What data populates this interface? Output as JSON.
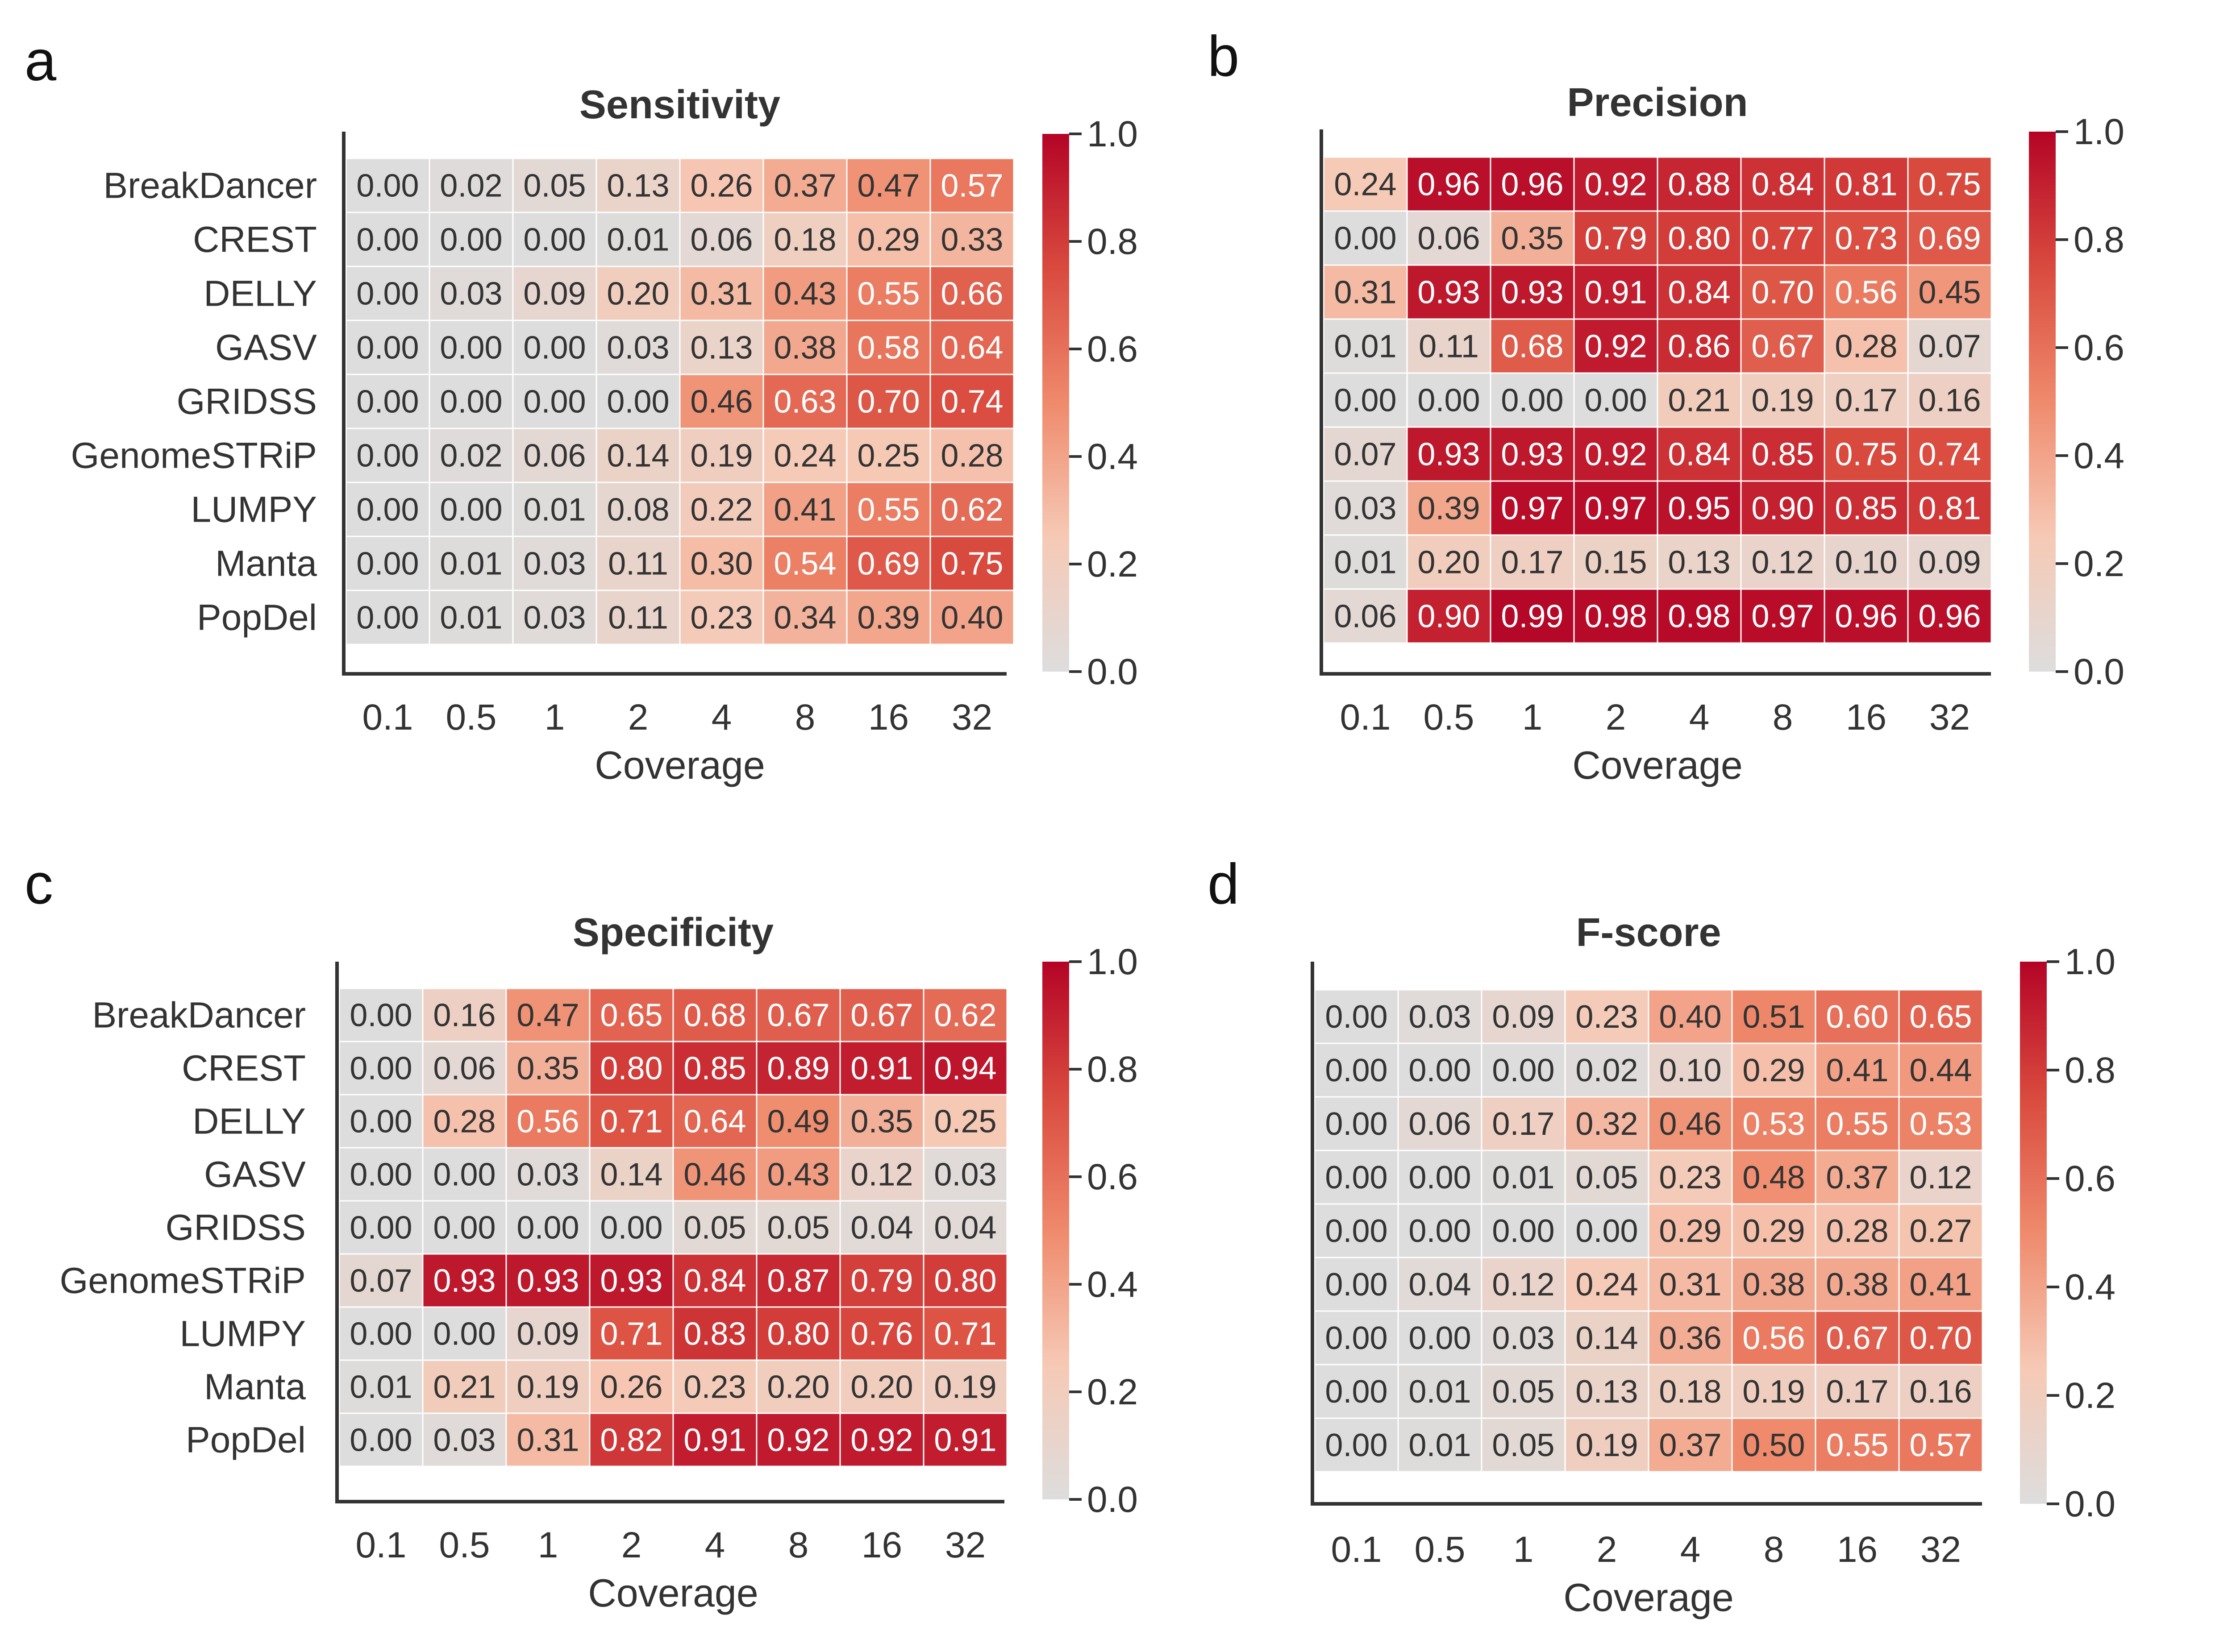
{
  "colorscale": {
    "stops": [
      {
        "v": 0.0,
        "color": "#dddddd"
      },
      {
        "v": 0.25,
        "color": "#f6c9b5"
      },
      {
        "v": 0.5,
        "color": "#ef8a6c"
      },
      {
        "v": 0.75,
        "color": "#d94a3e"
      },
      {
        "v": 1.0,
        "color": "#b40426"
      }
    ],
    "text_light": "#ffffff",
    "text_dark": "#333333"
  },
  "chart_data": [
    {
      "type": "heatmap",
      "panel": "a",
      "title": "Sensitivity",
      "xlabel": "Coverage",
      "ylabel": "",
      "x": [
        "0.1",
        "0.5",
        "1",
        "2",
        "4",
        "8",
        "16",
        "32"
      ],
      "y": [
        "BreakDancer",
        "CREST",
        "DELLY",
        "GASV",
        "GRIDSS",
        "GenomeSTRiP",
        "LUMPY",
        "Manta",
        "PopDel"
      ],
      "values": [
        [
          0.0,
          0.02,
          0.05,
          0.13,
          0.26,
          0.37,
          0.47,
          0.57
        ],
        [
          0.0,
          0.0,
          0.0,
          0.01,
          0.06,
          0.18,
          0.29,
          0.33
        ],
        [
          0.0,
          0.03,
          0.09,
          0.2,
          0.31,
          0.43,
          0.55,
          0.66
        ],
        [
          0.0,
          0.0,
          0.0,
          0.03,
          0.13,
          0.38,
          0.58,
          0.64
        ],
        [
          0.0,
          0.0,
          0.0,
          0.0,
          0.46,
          0.63,
          0.7,
          0.74
        ],
        [
          0.0,
          0.02,
          0.06,
          0.14,
          0.19,
          0.24,
          0.25,
          0.28
        ],
        [
          0.0,
          0.0,
          0.01,
          0.08,
          0.22,
          0.41,
          0.55,
          0.62
        ],
        [
          0.0,
          0.01,
          0.03,
          0.11,
          0.3,
          0.54,
          0.69,
          0.75
        ],
        [
          0.0,
          0.01,
          0.03,
          0.11,
          0.23,
          0.34,
          0.39,
          0.4
        ]
      ],
      "colorbar": {
        "range": [
          0,
          1
        ],
        "ticks": [
          "0.0",
          "0.2",
          "0.4",
          "0.6",
          "0.8",
          "1.0"
        ]
      }
    },
    {
      "type": "heatmap",
      "panel": "b",
      "title": "Precision",
      "xlabel": "Coverage",
      "ylabel": "",
      "x": [
        "0.1",
        "0.5",
        "1",
        "2",
        "4",
        "8",
        "16",
        "32"
      ],
      "y": [],
      "values": [
        [
          0.24,
          0.96,
          0.96,
          0.92,
          0.88,
          0.84,
          0.81,
          0.75
        ],
        [
          0.0,
          0.06,
          0.35,
          0.79,
          0.8,
          0.77,
          0.73,
          0.69
        ],
        [
          0.31,
          0.93,
          0.93,
          0.91,
          0.84,
          0.7,
          0.56,
          0.45
        ],
        [
          0.01,
          0.11,
          0.68,
          0.92,
          0.86,
          0.67,
          0.28,
          0.07
        ],
        [
          0.0,
          0.0,
          0.0,
          0.0,
          0.21,
          0.19,
          0.17,
          0.16
        ],
        [
          0.07,
          0.93,
          0.93,
          0.92,
          0.84,
          0.85,
          0.75,
          0.74
        ],
        [
          0.03,
          0.39,
          0.97,
          0.97,
          0.95,
          0.9,
          0.85,
          0.81
        ],
        [
          0.01,
          0.2,
          0.17,
          0.15,
          0.13,
          0.12,
          0.1,
          0.09
        ],
        [
          0.06,
          0.9,
          0.99,
          0.98,
          0.98,
          0.97,
          0.96,
          0.96
        ]
      ],
      "colorbar": {
        "range": [
          0,
          1
        ],
        "ticks": [
          "0.0",
          "0.2",
          "0.4",
          "0.6",
          "0.8",
          "1.0"
        ]
      }
    },
    {
      "type": "heatmap",
      "panel": "c",
      "title": "Specificity",
      "xlabel": "Coverage",
      "ylabel": "",
      "x": [
        "0.1",
        "0.5",
        "1",
        "2",
        "4",
        "8",
        "16",
        "32"
      ],
      "y": [
        "BreakDancer",
        "CREST",
        "DELLY",
        "GASV",
        "GRIDSS",
        "GenomeSTRiP",
        "LUMPY",
        "Manta",
        "PopDel"
      ],
      "values": [
        [
          0.0,
          0.16,
          0.47,
          0.65,
          0.68,
          0.67,
          0.67,
          0.62
        ],
        [
          0.0,
          0.06,
          0.35,
          0.8,
          0.85,
          0.89,
          0.91,
          0.94
        ],
        [
          0.0,
          0.28,
          0.56,
          0.71,
          0.64,
          0.49,
          0.35,
          0.25
        ],
        [
          0.0,
          0.0,
          0.03,
          0.14,
          0.46,
          0.43,
          0.12,
          0.03
        ],
        [
          0.0,
          0.0,
          0.0,
          0.0,
          0.05,
          0.05,
          0.04,
          0.04
        ],
        [
          0.07,
          0.93,
          0.93,
          0.93,
          0.84,
          0.87,
          0.79,
          0.8
        ],
        [
          0.0,
          0.0,
          0.09,
          0.71,
          0.83,
          0.8,
          0.76,
          0.71
        ],
        [
          0.01,
          0.21,
          0.19,
          0.26,
          0.23,
          0.2,
          0.2,
          0.19
        ],
        [
          0.0,
          0.03,
          0.31,
          0.82,
          0.91,
          0.92,
          0.92,
          0.91
        ]
      ],
      "colorbar": {
        "range": [
          0,
          1
        ],
        "ticks": [
          "0.0",
          "0.2",
          "0.4",
          "0.6",
          "0.8",
          "1.0"
        ]
      }
    },
    {
      "type": "heatmap",
      "panel": "d",
      "title": "F-score",
      "xlabel": "Coverage",
      "ylabel": "",
      "x": [
        "0.1",
        "0.5",
        "1",
        "2",
        "4",
        "8",
        "16",
        "32"
      ],
      "y": [],
      "values": [
        [
          0.0,
          0.03,
          0.09,
          0.23,
          0.4,
          0.51,
          0.6,
          0.65
        ],
        [
          0.0,
          0.0,
          0.0,
          0.02,
          0.1,
          0.29,
          0.41,
          0.44
        ],
        [
          0.0,
          0.06,
          0.17,
          0.32,
          0.46,
          0.53,
          0.55,
          0.53
        ],
        [
          0.0,
          0.0,
          0.01,
          0.05,
          0.23,
          0.48,
          0.37,
          0.12
        ],
        [
          0.0,
          0.0,
          0.0,
          0.0,
          0.29,
          0.29,
          0.28,
          0.27
        ],
        [
          0.0,
          0.04,
          0.12,
          0.24,
          0.31,
          0.38,
          0.38,
          0.41
        ],
        [
          0.0,
          0.0,
          0.03,
          0.14,
          0.36,
          0.56,
          0.67,
          0.7
        ],
        [
          0.0,
          0.01,
          0.05,
          0.13,
          0.18,
          0.19,
          0.17,
          0.16
        ],
        [
          0.0,
          0.01,
          0.05,
          0.19,
          0.37,
          0.5,
          0.55,
          0.57
        ]
      ],
      "colorbar": {
        "range": [
          0,
          1
        ],
        "ticks": [
          "0.0",
          "0.2",
          "0.4",
          "0.6",
          "0.8",
          "1.0"
        ]
      }
    }
  ]
}
